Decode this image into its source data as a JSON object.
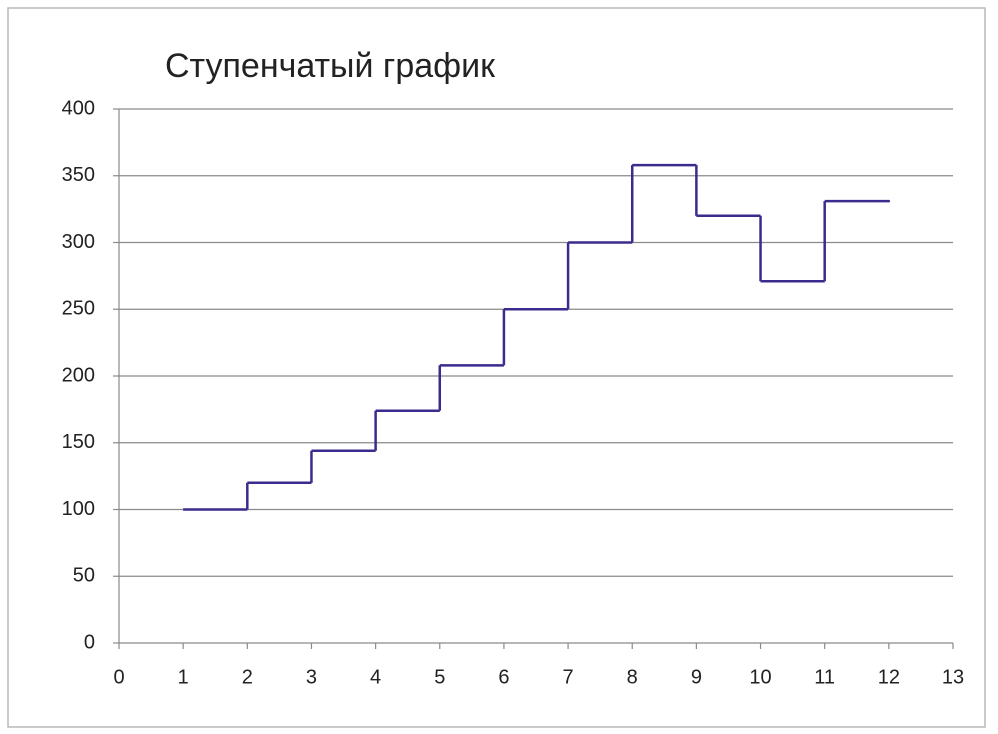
{
  "chart_data": {
    "type": "line",
    "step": "post",
    "title": "Ступенчатый график",
    "x": [
      1,
      2,
      3,
      4,
      5,
      6,
      7,
      8,
      9,
      10,
      11,
      12
    ],
    "values": [
      100,
      120,
      144,
      174,
      208,
      250,
      300,
      358,
      320,
      271,
      331,
      331
    ],
    "color": "#3d2a8f",
    "xlim": [
      0,
      13
    ],
    "xticks": [
      0,
      1,
      2,
      3,
      4,
      5,
      6,
      7,
      8,
      9,
      10,
      11,
      12,
      13
    ],
    "ylim": [
      0,
      400
    ],
    "yticks": [
      0,
      50,
      100,
      150,
      200,
      250,
      300,
      350,
      400
    ],
    "grid": true
  }
}
